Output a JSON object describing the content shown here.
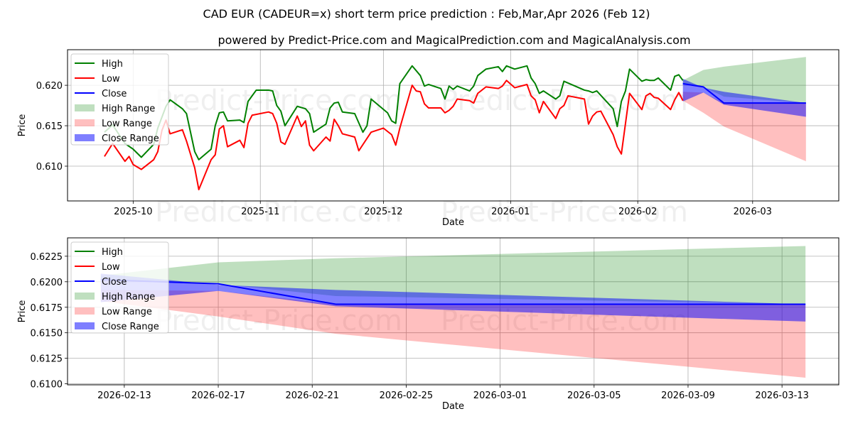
{
  "title": "CAD EUR (CADEUR=x) short term price prediction : Feb,Mar,Apr 2026 (Feb 12)",
  "subtitle": "powered by Predict-Price.com and MagicalPrediction.com and MagicalAnalysis.com",
  "watermark": "Predict-Price.com",
  "colors": {
    "high": "#008000",
    "low": "#ff0000",
    "close": "#0000ff",
    "high_range": "#008000",
    "low_range": "#ff0000",
    "close_range": "#0000ff"
  },
  "legend": [
    "High",
    "Low",
    "Close",
    "High Range",
    "Low Range",
    "Close Range"
  ],
  "chart_data": [
    {
      "type": "line",
      "xlabel": "Date",
      "ylabel": "Price",
      "xlim": [
        "2025-09-15",
        "2026-03-22"
      ],
      "ylim": [
        0.6057,
        0.6244
      ],
      "grid": true,
      "legend_position": "top-left",
      "xticks": [
        [
          "2025-10-01",
          "2025-10"
        ],
        [
          "2025-11-01",
          "2025-11"
        ],
        [
          "2025-12-01",
          "2025-12"
        ],
        [
          "2026-01-01",
          "2026-01"
        ],
        [
          "2026-02-01",
          "2026-02"
        ],
        [
          "2026-03-01",
          "2026-03"
        ]
      ],
      "yticks": [
        [
          0.61,
          "0.610"
        ],
        [
          0.615,
          "0.615"
        ],
        [
          0.62,
          "0.620"
        ]
      ],
      "show_history": true
    },
    {
      "type": "line",
      "xlabel": "Date",
      "ylabel": "Price",
      "xlim": [
        "2026-02-10T14:00",
        "2026-03-15T10:00"
      ],
      "ylim": [
        0.6099,
        0.6243
      ],
      "grid": true,
      "legend_position": "top-left",
      "xticks": [
        [
          "2026-02-13",
          "2026-02-13"
        ],
        [
          "2026-02-17",
          "2026-02-17"
        ],
        [
          "2026-02-21",
          "2026-02-21"
        ],
        [
          "2026-02-25",
          "2026-02-25"
        ],
        [
          "2026-03-01",
          "2026-03-01"
        ],
        [
          "2026-03-05",
          "2026-03-05"
        ],
        [
          "2026-03-09",
          "2026-03-09"
        ],
        [
          "2026-03-13",
          "2026-03-13"
        ]
      ],
      "yticks": [
        [
          0.61,
          "0.6100"
        ],
        [
          0.6125,
          "0.6125"
        ],
        [
          0.615,
          "0.6150"
        ],
        [
          0.6175,
          "0.6175"
        ],
        [
          0.62,
          "0.6200"
        ],
        [
          0.6225,
          "0.6225"
        ]
      ],
      "show_history": false
    }
  ],
  "history": {
    "high": [
      [
        "2025-09-24",
        0.6142
      ],
      [
        "2025-09-26",
        0.6151
      ],
      [
        "2025-09-29",
        0.6128
      ],
      [
        "2025-10-01",
        0.6121
      ],
      [
        "2025-10-03",
        0.6111
      ],
      [
        "2025-10-06",
        0.6127
      ],
      [
        "2025-10-07",
        0.6147
      ],
      [
        "2025-10-09",
        0.6174
      ],
      [
        "2025-10-10",
        0.6182
      ],
      [
        "2025-10-13",
        0.6171
      ],
      [
        "2025-10-14",
        0.6165
      ],
      [
        "2025-10-16",
        0.6118
      ],
      [
        "2025-10-17",
        0.6108
      ],
      [
        "2025-10-20",
        0.6121
      ],
      [
        "2025-10-21",
        0.615
      ],
      [
        "2025-10-22",
        0.6166
      ],
      [
        "2025-10-23",
        0.6167
      ],
      [
        "2025-10-24",
        0.6156
      ],
      [
        "2025-10-27",
        0.6157
      ],
      [
        "2025-10-28",
        0.6154
      ],
      [
        "2025-10-29",
        0.618
      ],
      [
        "2025-10-31",
        0.6194
      ],
      [
        "2025-11-03",
        0.6194
      ],
      [
        "2025-11-04",
        0.6193
      ],
      [
        "2025-11-05",
        0.6175
      ],
      [
        "2025-11-06",
        0.6168
      ],
      [
        "2025-11-07",
        0.615
      ],
      [
        "2025-11-10",
        0.6174
      ],
      [
        "2025-11-12",
        0.6171
      ],
      [
        "2025-11-13",
        0.6165
      ],
      [
        "2025-11-14",
        0.6142
      ],
      [
        "2025-11-17",
        0.6152
      ],
      [
        "2025-11-18",
        0.6172
      ],
      [
        "2025-11-19",
        0.6178
      ],
      [
        "2025-11-20",
        0.6179
      ],
      [
        "2025-11-21",
        0.6167
      ],
      [
        "2025-11-24",
        0.6165
      ],
      [
        "2025-11-26",
        0.6142
      ],
      [
        "2025-11-27",
        0.615
      ],
      [
        "2025-11-28",
        0.6183
      ],
      [
        "2025-12-02",
        0.6166
      ],
      [
        "2025-12-03",
        0.6156
      ],
      [
        "2025-12-04",
        0.6153
      ],
      [
        "2025-12-05",
        0.6202
      ],
      [
        "2025-12-08",
        0.6224
      ],
      [
        "2025-12-10",
        0.6212
      ],
      [
        "2025-12-11",
        0.6199
      ],
      [
        "2025-12-12",
        0.6201
      ],
      [
        "2025-12-15",
        0.6196
      ],
      [
        "2025-12-16",
        0.6183
      ],
      [
        "2025-12-17",
        0.6199
      ],
      [
        "2025-12-18",
        0.6195
      ],
      [
        "2025-12-19",
        0.6199
      ],
      [
        "2025-12-22",
        0.6193
      ],
      [
        "2025-12-23",
        0.6199
      ],
      [
        "2025-12-24",
        0.6212
      ],
      [
        "2025-12-26",
        0.622
      ],
      [
        "2025-12-29",
        0.6223
      ],
      [
        "2025-12-30",
        0.6217
      ],
      [
        "2025-12-31",
        0.6224
      ],
      [
        "2026-01-02",
        0.622
      ],
      [
        "2026-01-05",
        0.6224
      ],
      [
        "2026-01-06",
        0.6209
      ],
      [
        "2026-01-07",
        0.6202
      ],
      [
        "2026-01-08",
        0.619
      ],
      [
        "2026-01-09",
        0.6193
      ],
      [
        "2026-01-12",
        0.6183
      ],
      [
        "2026-01-13",
        0.6187
      ],
      [
        "2026-01-14",
        0.6205
      ],
      [
        "2026-01-19",
        0.6194
      ],
      [
        "2026-01-20",
        0.6193
      ],
      [
        "2026-01-21",
        0.6191
      ],
      [
        "2026-01-22",
        0.6193
      ],
      [
        "2026-01-26",
        0.6171
      ],
      [
        "2026-01-27",
        0.6149
      ],
      [
        "2026-01-28",
        0.618
      ],
      [
        "2026-01-29",
        0.6193
      ],
      [
        "2026-01-30",
        0.622
      ],
      [
        "2026-02-02",
        0.6205
      ],
      [
        "2026-02-03",
        0.6207
      ],
      [
        "2026-02-04",
        0.6206
      ],
      [
        "2026-02-05",
        0.6206
      ],
      [
        "2026-02-06",
        0.6209
      ],
      [
        "2026-02-09",
        0.6194
      ],
      [
        "2026-02-10",
        0.6211
      ],
      [
        "2026-02-11",
        0.6213
      ],
      [
        "2026-02-12",
        0.6206
      ]
    ],
    "low": [
      [
        "2025-09-24",
        0.6112
      ],
      [
        "2025-09-26",
        0.6128
      ],
      [
        "2025-09-29",
        0.6106
      ],
      [
        "2025-09-30",
        0.6112
      ],
      [
        "2025-10-01",
        0.6102
      ],
      [
        "2025-10-03",
        0.6096
      ],
      [
        "2025-10-06",
        0.6108
      ],
      [
        "2025-10-07",
        0.6118
      ],
      [
        "2025-10-08",
        0.6144
      ],
      [
        "2025-10-09",
        0.6157
      ],
      [
        "2025-10-10",
        0.614
      ],
      [
        "2025-10-13",
        0.6145
      ],
      [
        "2025-10-14",
        0.6131
      ],
      [
        "2025-10-16",
        0.6098
      ],
      [
        "2025-10-17",
        0.6071
      ],
      [
        "2025-10-20",
        0.6108
      ],
      [
        "2025-10-21",
        0.6114
      ],
      [
        "2025-10-22",
        0.6146
      ],
      [
        "2025-10-23",
        0.615
      ],
      [
        "2025-10-24",
        0.6124
      ],
      [
        "2025-10-27",
        0.6132
      ],
      [
        "2025-10-28",
        0.6123
      ],
      [
        "2025-10-29",
        0.6153
      ],
      [
        "2025-10-30",
        0.6163
      ],
      [
        "2025-11-03",
        0.6167
      ],
      [
        "2025-11-04",
        0.6165
      ],
      [
        "2025-11-05",
        0.6153
      ],
      [
        "2025-11-06",
        0.613
      ],
      [
        "2025-11-07",
        0.6127
      ],
      [
        "2025-11-10",
        0.6162
      ],
      [
        "2025-11-11",
        0.6149
      ],
      [
        "2025-11-12",
        0.6156
      ],
      [
        "2025-11-13",
        0.6126
      ],
      [
        "2025-11-14",
        0.6119
      ],
      [
        "2025-11-17",
        0.6136
      ],
      [
        "2025-11-18",
        0.6131
      ],
      [
        "2025-11-19",
        0.6158
      ],
      [
        "2025-11-20",
        0.615
      ],
      [
        "2025-11-21",
        0.614
      ],
      [
        "2025-11-24",
        0.6136
      ],
      [
        "2025-11-25",
        0.6119
      ],
      [
        "2025-11-28",
        0.6142
      ],
      [
        "2025-12-01",
        0.6147
      ],
      [
        "2025-12-03",
        0.6139
      ],
      [
        "2025-12-04",
        0.6126
      ],
      [
        "2025-12-05",
        0.6147
      ],
      [
        "2025-12-08",
        0.62
      ],
      [
        "2025-12-09",
        0.6193
      ],
      [
        "2025-12-10",
        0.6192
      ],
      [
        "2025-12-11",
        0.6177
      ],
      [
        "2025-12-12",
        0.6172
      ],
      [
        "2025-12-15",
        0.6172
      ],
      [
        "2025-12-16",
        0.6166
      ],
      [
        "2025-12-17",
        0.6169
      ],
      [
        "2025-12-18",
        0.6174
      ],
      [
        "2025-12-19",
        0.6183
      ],
      [
        "2025-12-22",
        0.6181
      ],
      [
        "2025-12-23",
        0.6178
      ],
      [
        "2025-12-24",
        0.619
      ],
      [
        "2025-12-26",
        0.6198
      ],
      [
        "2025-12-29",
        0.6196
      ],
      [
        "2025-12-30",
        0.6199
      ],
      [
        "2025-12-31",
        0.6206
      ],
      [
        "2026-01-02",
        0.6197
      ],
      [
        "2026-01-05",
        0.6201
      ],
      [
        "2026-01-06",
        0.6187
      ],
      [
        "2026-01-07",
        0.6182
      ],
      [
        "2026-01-08",
        0.6166
      ],
      [
        "2026-01-09",
        0.618
      ],
      [
        "2026-01-12",
        0.6159
      ],
      [
        "2026-01-13",
        0.6171
      ],
      [
        "2026-01-14",
        0.6175
      ],
      [
        "2026-01-15",
        0.6187
      ],
      [
        "2026-01-19",
        0.6183
      ],
      [
        "2026-01-20",
        0.6152
      ],
      [
        "2026-01-21",
        0.6162
      ],
      [
        "2026-01-22",
        0.6167
      ],
      [
        "2026-01-23",
        0.6168
      ],
      [
        "2026-01-26",
        0.6139
      ],
      [
        "2026-01-27",
        0.6124
      ],
      [
        "2026-01-28",
        0.6115
      ],
      [
        "2026-01-30",
        0.619
      ],
      [
        "2026-02-02",
        0.617
      ],
      [
        "2026-02-03",
        0.6187
      ],
      [
        "2026-02-04",
        0.619
      ],
      [
        "2026-02-05",
        0.6185
      ],
      [
        "2026-02-06",
        0.6184
      ],
      [
        "2026-02-09",
        0.617
      ],
      [
        "2026-02-10",
        0.6182
      ],
      [
        "2026-02-11",
        0.6191
      ],
      [
        "2026-02-12",
        0.6181
      ]
    ]
  },
  "forecast": {
    "dates": [
      "2026-02-12",
      "2026-02-17",
      "2026-02-22",
      "2026-03-14"
    ],
    "close": [
      0.6202,
      0.6198,
      0.6178,
      0.6178
    ],
    "high_range": {
      "upper": [
        0.6206,
        0.6219,
        0.6223,
        0.6235
      ],
      "lower": [
        0.6202,
        0.6198,
        0.6186,
        0.6178
      ]
    },
    "low_range": {
      "upper": [
        0.6192,
        0.6191,
        0.6178,
        0.6178
      ],
      "lower": [
        0.6181,
        0.6166,
        0.6149,
        0.6106
      ]
    },
    "close_range": {
      "upper": [
        0.6208,
        0.6197,
        0.6192,
        0.6178
      ],
      "lower": [
        0.618,
        0.6191,
        0.6176,
        0.6161
      ]
    }
  }
}
